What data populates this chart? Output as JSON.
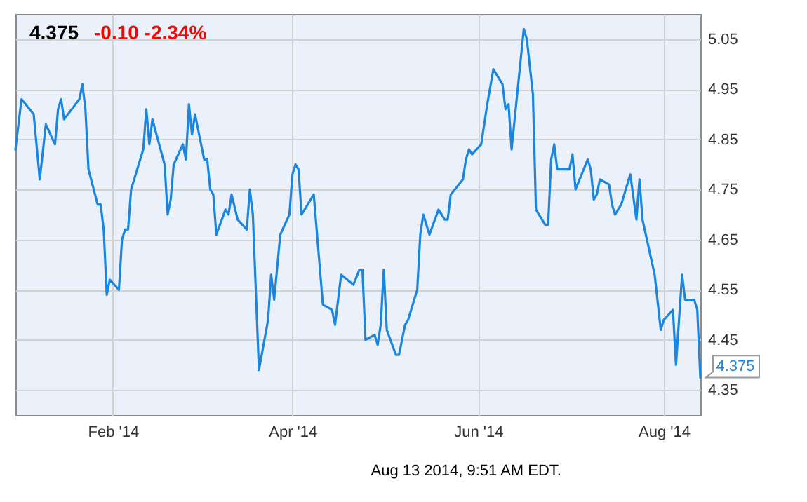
{
  "chart_data": {
    "type": "line",
    "title": "4.375",
    "subtitle": "-0.10 -2.34%",
    "x": [
      "2013-12-31",
      "2014-01-02",
      "2014-01-06",
      "2014-01-08",
      "2014-01-10",
      "2014-01-13",
      "2014-01-14",
      "2014-01-15",
      "2014-01-16",
      "2014-01-21",
      "2014-01-22",
      "2014-01-23",
      "2014-01-24",
      "2014-01-27",
      "2014-01-28",
      "2014-01-29",
      "2014-01-30",
      "2014-01-31",
      "2014-02-03",
      "2014-02-04",
      "2014-02-05",
      "2014-02-06",
      "2014-02-07",
      "2014-02-11",
      "2014-02-12",
      "2014-02-13",
      "2014-02-14",
      "2014-02-18",
      "2014-02-19",
      "2014-02-20",
      "2014-02-21",
      "2014-02-24",
      "2014-02-25",
      "2014-02-26",
      "2014-02-27",
      "2014-02-28",
      "2014-03-03",
      "2014-03-04",
      "2014-03-05",
      "2014-03-06",
      "2014-03-07",
      "2014-03-10",
      "2014-03-11",
      "2014-03-12",
      "2014-03-14",
      "2014-03-17",
      "2014-03-18",
      "2014-03-19",
      "2014-03-21",
      "2014-03-24",
      "2014-03-25",
      "2014-03-26",
      "2014-03-28",
      "2014-03-31",
      "2014-04-01",
      "2014-04-02",
      "2014-04-03",
      "2014-04-04",
      "2014-04-08",
      "2014-04-11",
      "2014-04-14",
      "2014-04-15",
      "2014-04-17",
      "2014-04-21",
      "2014-04-23",
      "2014-04-24",
      "2014-04-25",
      "2014-04-28",
      "2014-04-29",
      "2014-04-30",
      "2014-05-01",
      "2014-05-02",
      "2014-05-05",
      "2014-05-06",
      "2014-05-08",
      "2014-05-09",
      "2014-05-12",
      "2014-05-13",
      "2014-05-14",
      "2014-05-16",
      "2014-05-19",
      "2014-05-21",
      "2014-05-22",
      "2014-05-23",
      "2014-05-27",
      "2014-05-28",
      "2014-05-29",
      "2014-05-30",
      "2014-06-02",
      "2014-06-04",
      "2014-06-06",
      "2014-06-09",
      "2014-06-10",
      "2014-06-11",
      "2014-06-12",
      "2014-06-16",
      "2014-06-17",
      "2014-06-19",
      "2014-06-20",
      "2014-06-23",
      "2014-06-24",
      "2014-06-25",
      "2014-06-26",
      "2014-06-27",
      "2014-07-01",
      "2014-07-02",
      "2014-07-03",
      "2014-07-07",
      "2014-07-08",
      "2014-07-09",
      "2014-07-10",
      "2014-07-11",
      "2014-07-14",
      "2014-07-15",
      "2014-07-16",
      "2014-07-18",
      "2014-07-21",
      "2014-07-23",
      "2014-07-24",
      "2014-07-25",
      "2014-07-29",
      "2014-07-31",
      "2014-08-01",
      "2014-08-04",
      "2014-08-05",
      "2014-08-07",
      "2014-08-08",
      "2014-08-11",
      "2014-08-12",
      "2014-08-13"
    ],
    "series": [
      {
        "color": "#1a86e0",
        "values": [
          4.83,
          4.93,
          4.9,
          4.77,
          4.88,
          4.84,
          4.91,
          4.93,
          4.89,
          4.93,
          4.96,
          4.91,
          4.79,
          4.72,
          4.72,
          4.67,
          4.54,
          4.57,
          4.55,
          4.65,
          4.67,
          4.67,
          4.75,
          4.83,
          4.91,
          4.84,
          4.89,
          4.8,
          4.7,
          4.73,
          4.8,
          4.84,
          4.81,
          4.92,
          4.86,
          4.9,
          4.81,
          4.81,
          4.75,
          4.74,
          4.66,
          4.71,
          4.7,
          4.74,
          4.69,
          4.67,
          4.75,
          4.7,
          4.39,
          4.49,
          4.58,
          4.53,
          4.66,
          4.7,
          4.78,
          4.8,
          4.79,
          4.7,
          4.74,
          4.52,
          4.51,
          4.48,
          4.58,
          4.56,
          4.59,
          4.59,
          4.45,
          4.46,
          4.44,
          4.48,
          4.59,
          4.47,
          4.42,
          4.42,
          4.48,
          4.49,
          4.55,
          4.66,
          4.7,
          4.66,
          4.71,
          4.69,
          4.69,
          4.74,
          4.77,
          4.81,
          4.83,
          4.82,
          4.84,
          4.92,
          4.99,
          4.96,
          4.91,
          4.92,
          4.83,
          5.07,
          5.05,
          4.94,
          4.71,
          4.68,
          4.68,
          4.81,
          4.84,
          4.79,
          4.79,
          4.82,
          4.75,
          4.81,
          4.79,
          4.73,
          4.74,
          4.77,
          4.76,
          4.72,
          4.7,
          4.72,
          4.78,
          4.69,
          4.77,
          4.69,
          4.58,
          4.47,
          4.49,
          4.51,
          4.4,
          4.58,
          4.53,
          4.53,
          4.51,
          4.375
        ]
      }
    ],
    "xlim": [
      "2013-12-31",
      "2014-08-13"
    ],
    "xticks": [
      {
        "value": "2014-02-01",
        "label": "Feb '14"
      },
      {
        "value": "2014-04-01",
        "label": "Apr '14"
      },
      {
        "value": "2014-06-01",
        "label": "Jun '14"
      },
      {
        "value": "2014-08-01",
        "label": "Aug '14"
      }
    ],
    "ylim": [
      4.3,
      5.1
    ],
    "yticks": [
      4.35,
      4.45,
      4.55,
      4.65,
      4.75,
      4.85,
      4.95,
      5.05
    ],
    "grid": true,
    "line_style": "solid",
    "annotations": [
      "Aug 13 2014, 9:51 AM EDT.",
      {
        "text": "4.375",
        "x": "2014-08-13",
        "y": 4.375
      }
    ]
  }
}
